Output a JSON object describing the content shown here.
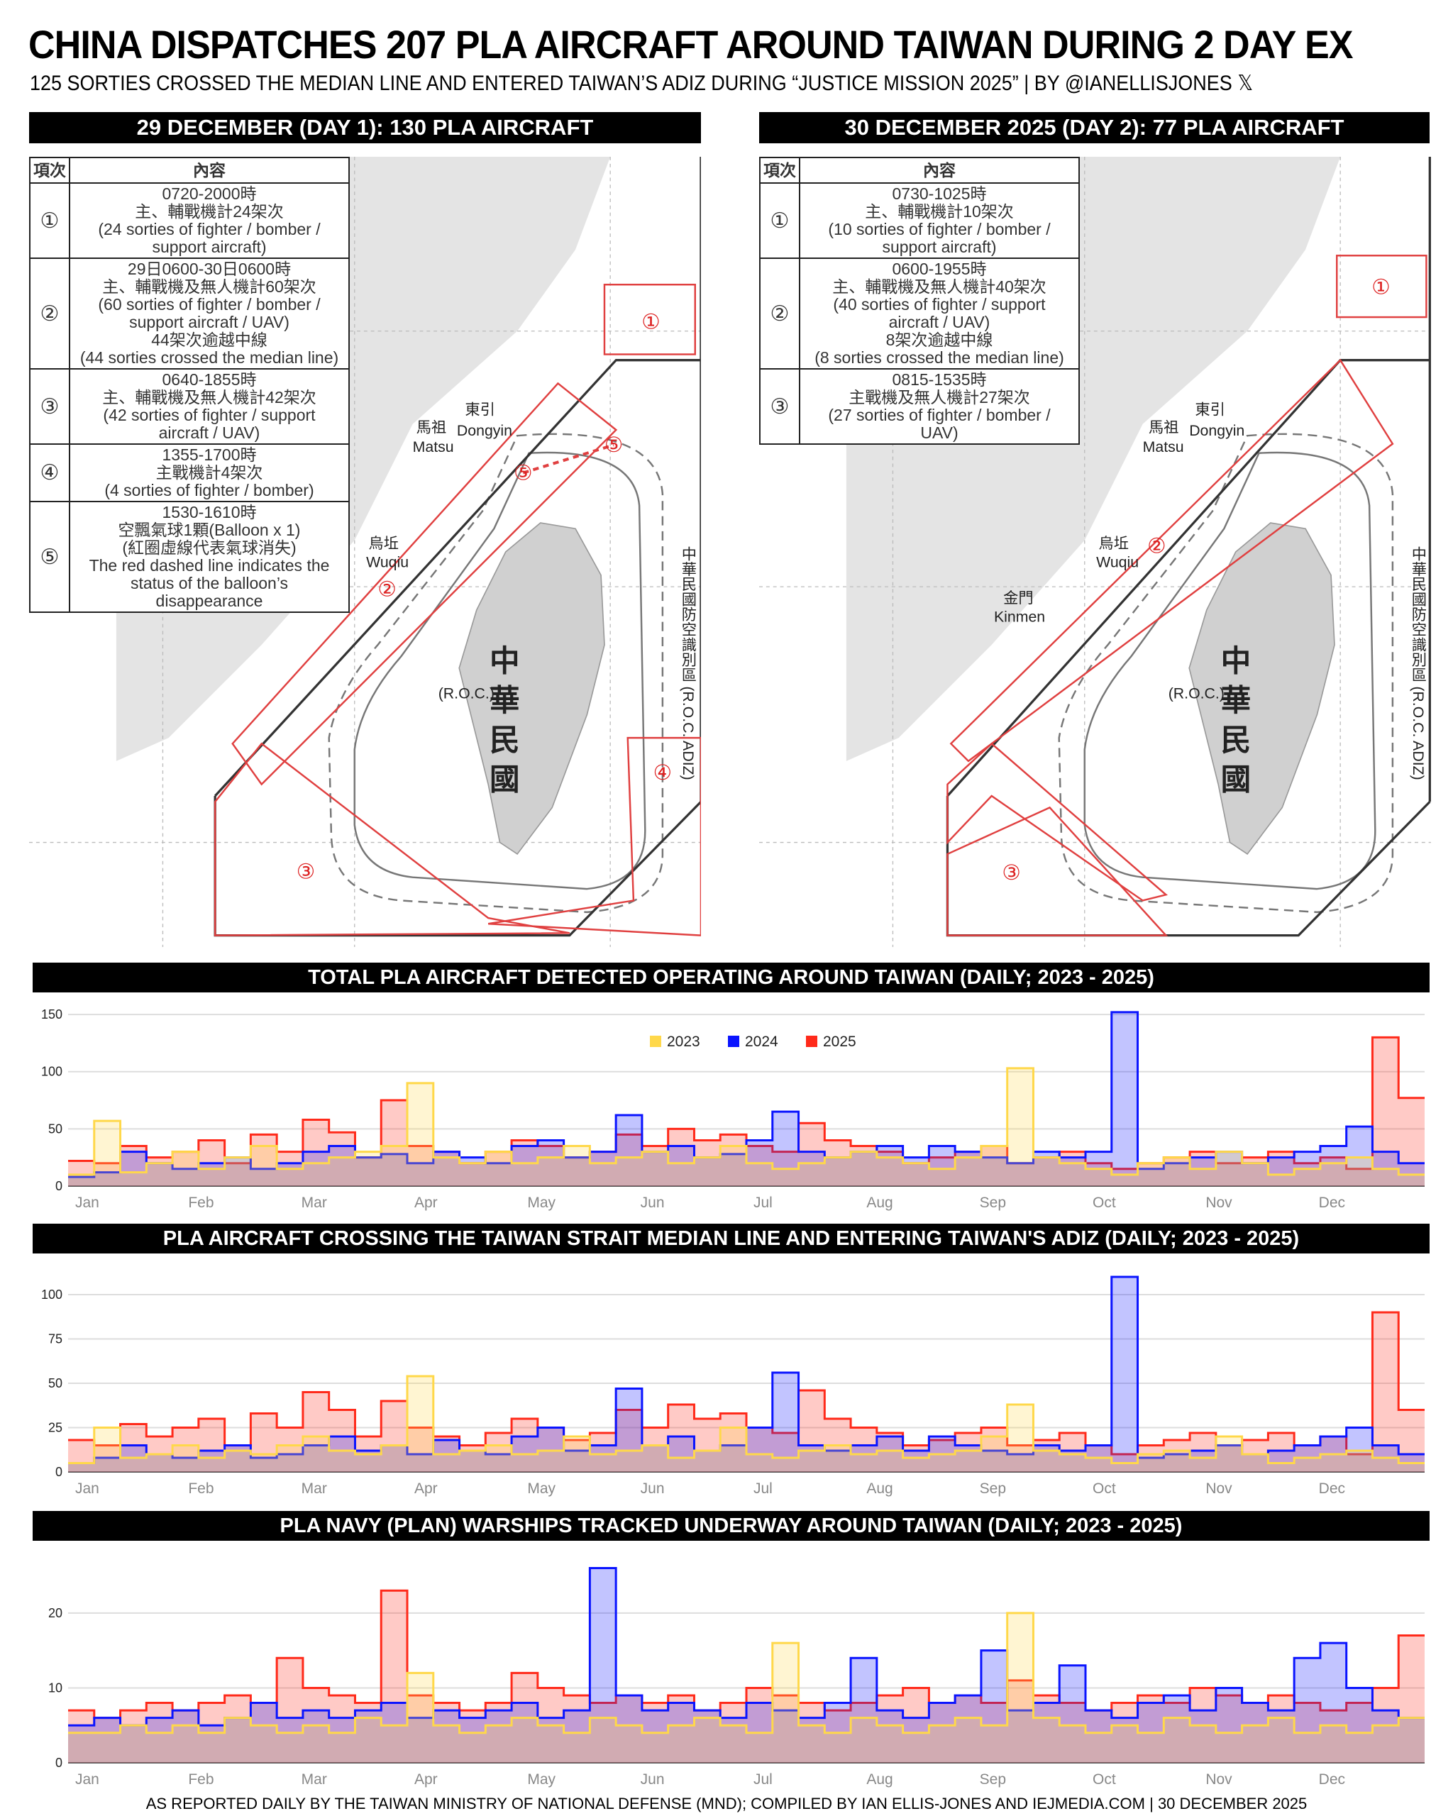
{
  "title": "CHINA DISPATCHES 207 PLA AIRCRAFT AROUND TAIWAN DURING 2 DAY EX",
  "subtitle": "125 SORTIES CROSSED THE MEDIAN LINE AND ENTERED TAIWAN’S ADIZ DURING “JUSTICE MISSION 2025” | BY @IANELLISJONES 𝕏",
  "footer": "AS REPORTED DAILY BY THE TAIWAN MINISTRY OF NATIONAL DEFENSE (MND); COMPILED BY IAN ELLIS-JONES AND IEJMEDIA.COM | 30 DECEMBER 2025",
  "panels": [
    {
      "header": "29 DECEMBER (DAY 1): 130 PLA AIRCRAFT",
      "table_headers": [
        "項次",
        "內容"
      ],
      "rows": [
        {
          "num": "①",
          "text": "0720-2000時\n主、輔戰機計24架次\n(24 sorties of fighter / bomber /\nsupport aircraft)"
        },
        {
          "num": "②",
          "text": "29日0600-30日0600時\n主、輔戰機及無人機計60架次\n(60 sorties of fighter / bomber /\nsupport aircraft / UAV)\n44架次逾越中線\n(44 sorties crossed the median line)"
        },
        {
          "num": "③",
          "text": "0640-1855時\n主、輔戰機及無人機計42架次\n(42 sorties of fighter / support\naircraft /  UAV)"
        },
        {
          "num": "④",
          "text": "1355-1700時\n主戰機計4架次\n(4 sorties of fighter / bomber)"
        },
        {
          "num": "⑤",
          "text": "1530-1610時\n空飄氣球1顆(Balloon x 1)\n(紅圈虛線代表氣球消失)\nThe red dashed line indicates the\nstatus of the balloon’s\ndisappearance"
        }
      ],
      "map": {
        "dongyin_zh": "東引",
        "dongyin": "Dongyin",
        "matsu_zh": "馬祖",
        "matsu": "Matsu",
        "wuqiu_zh": "烏坵",
        "wuqiu": "Wuqiu",
        "roc_zh": "中華民國",
        "roc": "(R.O.C.)",
        "adiz": "中華民國防空識別區 (R.O.C. ADIZ)",
        "z1": "①",
        "z2": "②",
        "z3": "③",
        "z4": "④",
        "z5": "⑤"
      }
    },
    {
      "header": "30 DECEMBER 2025 (DAY 2): 77 PLA AIRCRAFT",
      "table_headers": [
        "項次",
        "內容"
      ],
      "rows": [
        {
          "num": "①",
          "text": "0730-1025時\n主、輔戰機計10架次\n(10 sorties of fighter / bomber /\nsupport aircraft)"
        },
        {
          "num": "②",
          "text": "0600-1955時\n主、輔戰機及無人機計40架次\n(40 sorties of fighter / support\naircraft / UAV)\n8架次逾越中線\n(8 sorties crossed the median line)"
        },
        {
          "num": "③",
          "text": "0815-1535時\n主戰機及無人機計27架次\n(27 sorties of fighter / bomber /\nUAV)"
        }
      ],
      "map": {
        "dongyin_zh": "東引",
        "dongyin": "Dongyin",
        "matsu_zh": "馬祖",
        "matsu": "Matsu",
        "wuqiu_zh": "烏坵",
        "wuqiu": "Wuqiu",
        "kinmen_zh": "金門",
        "kinmen": "Kinmen",
        "roc_zh": "中華民國",
        "roc": "(R.O.C.)",
        "adiz": "中華民國防空識別區 (R.O.C. ADIZ)",
        "z1": "①",
        "z2": "②",
        "z3": "③"
      }
    }
  ],
  "chart_data": [
    {
      "type": "line",
      "title": "TOTAL PLA AIRCRAFT DETECTED OPERATING AROUND TAIWAN (DAILY; 2023 - 2025)",
      "xlabel": "",
      "ylabel": "",
      "ylim": [
        0,
        155
      ],
      "yticks": [
        0,
        50,
        100,
        150
      ],
      "grid": true,
      "legend": "top-center",
      "xticks": [
        "Jan",
        "Feb",
        "Mar",
        "Apr",
        "May",
        "Jun",
        "Jul",
        "Aug",
        "Sep",
        "Oct",
        "Nov",
        "Dec"
      ],
      "sampling": "approx. weekly",
      "series": [
        {
          "name": "2025",
          "color": "#ff2a1a",
          "values": [
            22,
            20,
            35,
            25,
            30,
            40,
            20,
            45,
            30,
            58,
            47,
            25,
            75,
            35,
            30,
            20,
            30,
            40,
            35,
            25,
            30,
            45,
            35,
            50,
            40,
            45,
            35,
            30,
            55,
            40,
            35,
            30,
            20,
            25,
            30,
            35,
            20,
            25,
            30,
            20,
            15,
            20,
            25,
            30,
            20,
            25,
            30,
            20,
            25,
            15,
            130,
            77
          ]
        },
        {
          "name": "2024",
          "color": "#0a14ff",
          "values": [
            8,
            12,
            30,
            20,
            15,
            20,
            25,
            15,
            20,
            30,
            35,
            25,
            28,
            20,
            30,
            25,
            20,
            35,
            40,
            25,
            30,
            62,
            30,
            35,
            25,
            28,
            40,
            65,
            30,
            25,
            30,
            35,
            25,
            35,
            30,
            25,
            20,
            30,
            25,
            30,
            152,
            15,
            20,
            25,
            30,
            20,
            25,
            30,
            35,
            52,
            30,
            20
          ]
        },
        {
          "name": "2023",
          "color": "#ffd84a",
          "values": [
            10,
            57,
            12,
            20,
            30,
            15,
            25,
            35,
            15,
            20,
            25,
            30,
            35,
            90,
            25,
            20,
            30,
            20,
            25,
            35,
            20,
            25,
            30,
            20,
            25,
            35,
            20,
            15,
            20,
            25,
            30,
            25,
            20,
            15,
            25,
            35,
            103,
            25,
            20,
            15,
            10,
            20,
            25,
            15,
            30,
            20,
            10,
            15,
            20,
            25,
            15,
            10
          ]
        }
      ]
    },
    {
      "type": "line",
      "title": "PLA AIRCRAFT CROSSING THE TAIWAN STRAIT MEDIAN LINE AND ENTERING TAIWAN'S ADIZ (DAILY; 2023 - 2025)",
      "xlabel": "",
      "ylabel": "",
      "ylim": [
        0,
        112
      ],
      "yticks": [
        0,
        25,
        50,
        75,
        100
      ],
      "grid": true,
      "xticks": [
        "Jan",
        "Feb",
        "Mar",
        "Apr",
        "May",
        "Jun",
        "Jul",
        "Aug",
        "Sep",
        "Oct",
        "Nov",
        "Dec"
      ],
      "sampling": "approx. weekly",
      "series": [
        {
          "name": "2025",
          "color": "#ff2a1a",
          "values": [
            18,
            15,
            27,
            20,
            25,
            30,
            15,
            33,
            25,
            45,
            35,
            20,
            40,
            25,
            20,
            15,
            22,
            30,
            25,
            18,
            22,
            35,
            25,
            38,
            30,
            33,
            25,
            22,
            46,
            30,
            25,
            22,
            15,
            18,
            22,
            25,
            15,
            18,
            22,
            15,
            10,
            15,
            18,
            22,
            15,
            18,
            22,
            15,
            20,
            10,
            90,
            35
          ]
        },
        {
          "name": "2024",
          "color": "#0a14ff",
          "values": [
            5,
            8,
            15,
            10,
            8,
            12,
            15,
            8,
            10,
            15,
            20,
            12,
            15,
            10,
            18,
            12,
            10,
            20,
            25,
            12,
            15,
            47,
            15,
            20,
            12,
            15,
            25,
            56,
            15,
            12,
            15,
            20,
            12,
            20,
            15,
            12,
            10,
            15,
            12,
            15,
            110,
            8,
            10,
            12,
            15,
            10,
            12,
            15,
            20,
            25,
            15,
            10
          ]
        },
        {
          "name": "2023",
          "color": "#ffd84a",
          "values": [
            5,
            25,
            8,
            10,
            15,
            8,
            12,
            10,
            15,
            20,
            12,
            10,
            15,
            54,
            10,
            12,
            15,
            10,
            12,
            20,
            10,
            12,
            15,
            8,
            12,
            25,
            10,
            8,
            12,
            15,
            10,
            12,
            8,
            10,
            12,
            20,
            38,
            12,
            10,
            8,
            5,
            10,
            12,
            8,
            20,
            10,
            5,
            8,
            10,
            12,
            8,
            5
          ]
        }
      ]
    },
    {
      "type": "line",
      "title": "PLA NAVY (PLAN) WARSHIPS TRACKED UNDERWAY AROUND TAIWAN (DAILY; 2023 - 2025)",
      "xlabel": "",
      "ylabel": "",
      "ylim": [
        0,
        27
      ],
      "yticks": [
        0,
        10,
        20
      ],
      "grid": true,
      "xticks": [
        "Jan",
        "Feb",
        "Mar",
        "Apr",
        "May",
        "Jun",
        "Jul",
        "Aug",
        "Sep",
        "Oct",
        "Nov",
        "Dec"
      ],
      "sampling": "approx. weekly",
      "series": [
        {
          "name": "2025",
          "color": "#ff2a1a",
          "values": [
            7,
            6,
            7,
            8,
            7,
            8,
            9,
            8,
            14,
            10,
            9,
            8,
            23,
            9,
            8,
            7,
            8,
            12,
            10,
            9,
            8,
            9,
            8,
            9,
            7,
            8,
            10,
            9,
            8,
            7,
            8,
            9,
            10,
            8,
            9,
            8,
            11,
            9,
            8,
            7,
            8,
            9,
            8,
            10,
            9,
            8,
            9,
            8,
            7,
            8,
            10,
            17
          ]
        },
        {
          "name": "2024",
          "color": "#0a14ff",
          "values": [
            5,
            6,
            5,
            6,
            7,
            5,
            6,
            8,
            6,
            7,
            6,
            7,
            8,
            6,
            7,
            6,
            7,
            8,
            6,
            7,
            26,
            9,
            7,
            8,
            7,
            6,
            8,
            7,
            6,
            8,
            14,
            7,
            6,
            8,
            9,
            15,
            7,
            8,
            13,
            7,
            6,
            8,
            9,
            7,
            10,
            8,
            7,
            14,
            16,
            10,
            7,
            6
          ]
        },
        {
          "name": "2023",
          "color": "#ffd84a",
          "values": [
            4,
            4,
            5,
            4,
            5,
            4,
            6,
            5,
            4,
            5,
            4,
            6,
            5,
            12,
            5,
            4,
            5,
            6,
            5,
            4,
            6,
            5,
            4,
            5,
            6,
            5,
            4,
            16,
            5,
            4,
            6,
            5,
            4,
            5,
            6,
            5,
            20,
            6,
            5,
            4,
            5,
            4,
            6,
            5,
            4,
            5,
            6,
            4,
            5,
            4,
            5,
            6
          ]
        }
      ]
    }
  ]
}
